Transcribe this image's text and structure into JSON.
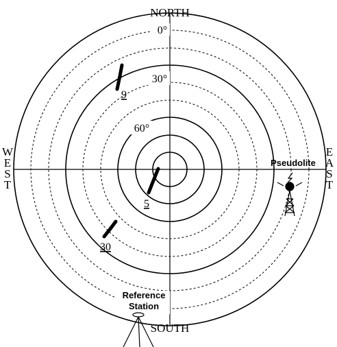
{
  "directions": {
    "north": "NORTH",
    "south": "SOUTH",
    "west": [
      "W",
      "E",
      "S",
      "T"
    ],
    "east": [
      "E",
      "A",
      "S",
      "T"
    ]
  },
  "elevations": [
    "0°",
    "30°",
    "60°"
  ],
  "satellites": [
    "9",
    "5",
    "30"
  ],
  "pseudolite": "Pseudolite",
  "reference_station": [
    "Reference",
    "Station"
  ]
}
